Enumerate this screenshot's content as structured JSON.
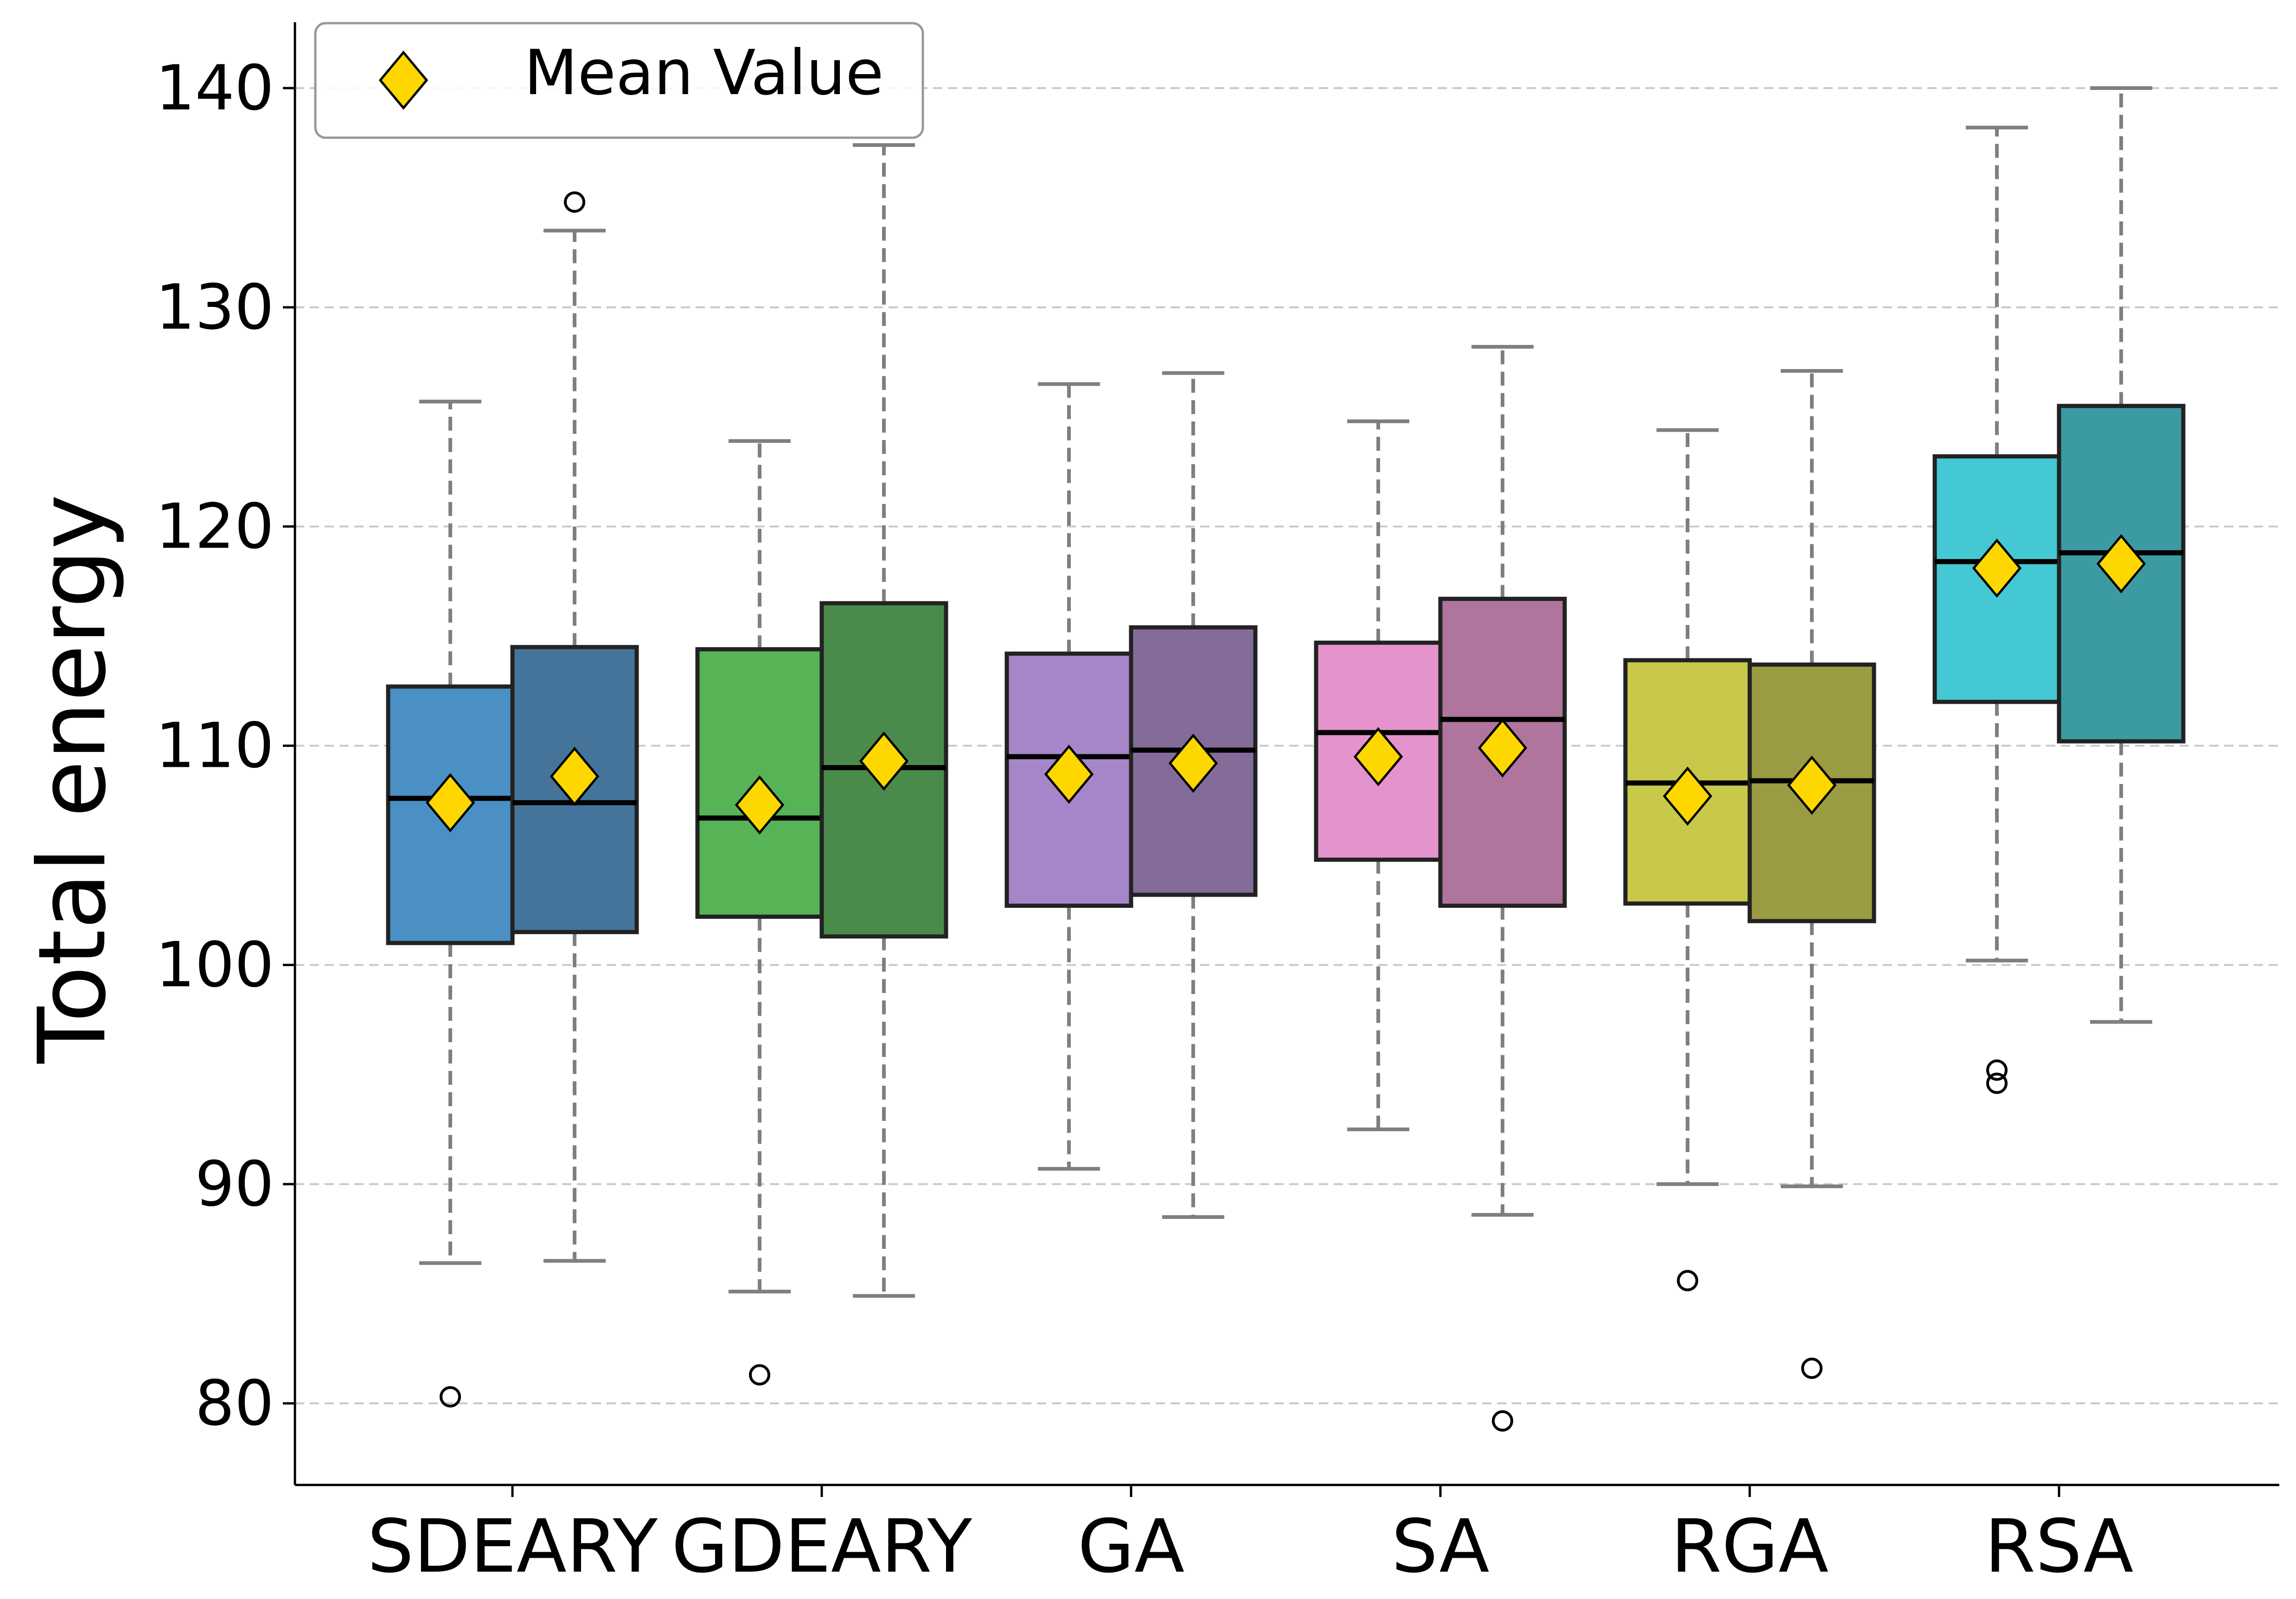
{
  "chart_data": {
    "type": "box",
    "title": "",
    "xlabel": "",
    "ylabel": "Total energy",
    "ylim": [
      76.5,
      143.0
    ],
    "yticks": [
      80,
      90,
      100,
      110,
      120,
      130,
      140
    ],
    "grid": "horizontal dashed",
    "legend": {
      "placement": "top-left",
      "entries": [
        "Mean Value"
      ]
    },
    "mean_marker_color": "#FFD700",
    "categories": [
      "SDEARY",
      "GDEARY",
      "GA",
      "SA",
      "RGA",
      "RSA"
    ],
    "boxes": [
      {
        "category": "SDEARY",
        "slot": 0,
        "color": "#4a90c4",
        "whislo": 86.4,
        "q1": 101.0,
        "median": 107.6,
        "q3": 112.7,
        "whishi": 125.7,
        "mean": 107.4,
        "fliers": [
          80.3
        ]
      },
      {
        "category": "SDEARY",
        "slot": 1,
        "color": "#44749a",
        "whislo": 86.5,
        "q1": 101.5,
        "median": 107.4,
        "q3": 114.5,
        "whishi": 133.5,
        "mean": 108.6,
        "fliers": [
          134.8
        ]
      },
      {
        "category": "GDEARY",
        "slot": 0,
        "color": "#56b356",
        "whislo": 85.1,
        "q1": 102.2,
        "median": 106.7,
        "q3": 114.4,
        "whishi": 123.9,
        "mean": 107.3,
        "fliers": [
          81.3
        ]
      },
      {
        "category": "GDEARY",
        "slot": 1,
        "color": "#4a8b4b",
        "whislo": 84.9,
        "q1": 101.3,
        "median": 109.0,
        "q3": 116.5,
        "whishi": 137.4,
        "mean": 109.3,
        "fliers": []
      },
      {
        "category": "GA",
        "slot": 0,
        "color": "#a686c8",
        "whislo": 90.7,
        "q1": 102.7,
        "median": 109.5,
        "q3": 114.2,
        "whishi": 126.5,
        "mean": 108.7,
        "fliers": []
      },
      {
        "category": "GA",
        "slot": 1,
        "color": "#846c9a",
        "whislo": 88.5,
        "q1": 103.2,
        "median": 109.8,
        "q3": 115.4,
        "whishi": 127.0,
        "mean": 109.2,
        "fliers": []
      },
      {
        "category": "SA",
        "slot": 0,
        "color": "#e593cc",
        "whislo": 92.5,
        "q1": 104.8,
        "median": 110.6,
        "q3": 114.7,
        "whishi": 124.8,
        "mean": 109.5,
        "fliers": []
      },
      {
        "category": "SA",
        "slot": 1,
        "color": "#b0759c",
        "whislo": 88.6,
        "q1": 102.7,
        "median": 111.2,
        "q3": 116.7,
        "whishi": 128.2,
        "mean": 109.9,
        "fliers": [
          79.2
        ]
      },
      {
        "category": "RGA",
        "slot": 0,
        "color": "#c8c84b",
        "whislo": 90.0,
        "q1": 102.8,
        "median": 108.3,
        "q3": 113.9,
        "whishi": 124.4,
        "mean": 107.7,
        "fliers": [
          85.6
        ]
      },
      {
        "category": "RGA",
        "slot": 1,
        "color": "#9b9b43",
        "whislo": 89.9,
        "q1": 102.0,
        "median": 108.4,
        "q3": 113.7,
        "whishi": 127.1,
        "mean": 108.2,
        "fliers": [
          81.6
        ]
      },
      {
        "category": "RSA",
        "slot": 0,
        "color": "#44c8d4",
        "whislo": 100.2,
        "q1": 112.0,
        "median": 118.4,
        "q3": 123.2,
        "whishi": 138.2,
        "mean": 118.1,
        "fliers": [
          95.2,
          94.6
        ]
      },
      {
        "category": "RSA",
        "slot": 1,
        "color": "#3c9aa3",
        "whislo": 97.4,
        "q1": 110.2,
        "median": 118.8,
        "q3": 125.5,
        "whishi": 140.0,
        "mean": 118.3,
        "fliers": []
      }
    ]
  }
}
